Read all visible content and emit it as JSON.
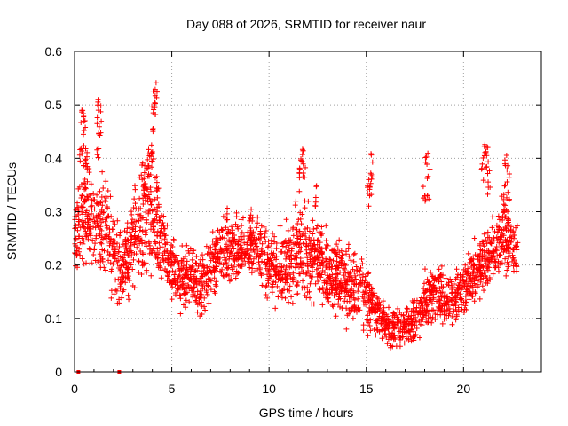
{
  "chart_data": {
    "type": "scatter",
    "title": "Day 088 of 2026, SRMTID for receiver naur",
    "xlabel": "GPS time / hours",
    "ylabel": "SRMTID / TECUs",
    "xlim": [
      0,
      24
    ],
    "ylim": [
      0,
      0.6
    ],
    "x_ticks": [
      0,
      5,
      10,
      15,
      20
    ],
    "x_tick_labels": [
      "0",
      "5",
      "10",
      "15",
      "20"
    ],
    "y_ticks": [
      0,
      0.1,
      0.2,
      0.3,
      0.4,
      0.5,
      0.6
    ],
    "y_tick_labels": [
      "0",
      "0.1",
      "0.2",
      "0.3",
      "0.4",
      "0.5",
      "0.6"
    ],
    "grid": true,
    "marker": "plus",
    "color": "#ff0000",
    "envelope": [
      [
        0.0,
        0.17,
        0.32
      ],
      [
        0.5,
        0.17,
        0.48
      ],
      [
        1.0,
        0.15,
        0.38
      ],
      [
        1.5,
        0.13,
        0.42
      ],
      [
        2.0,
        0.12,
        0.31
      ],
      [
        2.5,
        0.11,
        0.27
      ],
      [
        3.0,
        0.14,
        0.37
      ],
      [
        3.5,
        0.13,
        0.4
      ],
      [
        4.0,
        0.16,
        0.45
      ],
      [
        4.5,
        0.14,
        0.33
      ],
      [
        5.0,
        0.13,
        0.26
      ],
      [
        5.5,
        0.1,
        0.25
      ],
      [
        6.0,
        0.1,
        0.24
      ],
      [
        6.5,
        0.09,
        0.23
      ],
      [
        7.0,
        0.12,
        0.27
      ],
      [
        7.5,
        0.15,
        0.3
      ],
      [
        8.0,
        0.14,
        0.31
      ],
      [
        8.5,
        0.16,
        0.3
      ],
      [
        9.0,
        0.17,
        0.32
      ],
      [
        9.5,
        0.15,
        0.3
      ],
      [
        10.0,
        0.12,
        0.28
      ],
      [
        10.5,
        0.11,
        0.27
      ],
      [
        11.0,
        0.1,
        0.3
      ],
      [
        11.5,
        0.1,
        0.33
      ],
      [
        12.0,
        0.12,
        0.32
      ],
      [
        12.5,
        0.13,
        0.3
      ],
      [
        13.0,
        0.1,
        0.28
      ],
      [
        13.5,
        0.09,
        0.26
      ],
      [
        14.0,
        0.08,
        0.25
      ],
      [
        14.5,
        0.07,
        0.23
      ],
      [
        15.0,
        0.07,
        0.22
      ],
      [
        15.5,
        0.05,
        0.18
      ],
      [
        16.0,
        0.04,
        0.13
      ],
      [
        16.5,
        0.04,
        0.12
      ],
      [
        17.0,
        0.04,
        0.13
      ],
      [
        17.5,
        0.05,
        0.15
      ],
      [
        18.0,
        0.07,
        0.2
      ],
      [
        18.5,
        0.08,
        0.22
      ],
      [
        19.0,
        0.08,
        0.2
      ],
      [
        19.5,
        0.09,
        0.19
      ],
      [
        20.0,
        0.1,
        0.21
      ],
      [
        20.5,
        0.12,
        0.25
      ],
      [
        21.0,
        0.13,
        0.28
      ],
      [
        21.5,
        0.14,
        0.31
      ],
      [
        22.0,
        0.16,
        0.34
      ],
      [
        22.5,
        0.17,
        0.32
      ],
      [
        22.8,
        0.15,
        0.29
      ]
    ],
    "spikes": [
      [
        0.4,
        0.49
      ],
      [
        0.5,
        0.48
      ],
      [
        0.3,
        0.44
      ],
      [
        0.6,
        0.41
      ],
      [
        1.2,
        0.52
      ],
      [
        1.3,
        0.5
      ],
      [
        1.2,
        0.46
      ],
      [
        3.6,
        0.38
      ],
      [
        3.5,
        0.4
      ],
      [
        3.8,
        0.42
      ],
      [
        4.0,
        0.5
      ],
      [
        4.1,
        0.54
      ],
      [
        4.2,
        0.56
      ],
      [
        4.0,
        0.45
      ],
      [
        4.3,
        0.37
      ],
      [
        11.7,
        0.44
      ],
      [
        11.8,
        0.42
      ],
      [
        11.6,
        0.39
      ],
      [
        12.4,
        0.35
      ],
      [
        15.3,
        0.41
      ],
      [
        15.2,
        0.38
      ],
      [
        15.1,
        0.36
      ],
      [
        18.1,
        0.41
      ],
      [
        18.2,
        0.38
      ],
      [
        18.0,
        0.36
      ],
      [
        21.1,
        0.46
      ],
      [
        21.2,
        0.44
      ],
      [
        21.0,
        0.41
      ],
      [
        21.3,
        0.39
      ],
      [
        22.2,
        0.41
      ],
      [
        22.3,
        0.38
      ],
      [
        22.1,
        0.35
      ]
    ],
    "baseline_points": [
      [
        0.2,
        0.0
      ],
      [
        2.3,
        0.0
      ]
    ]
  }
}
